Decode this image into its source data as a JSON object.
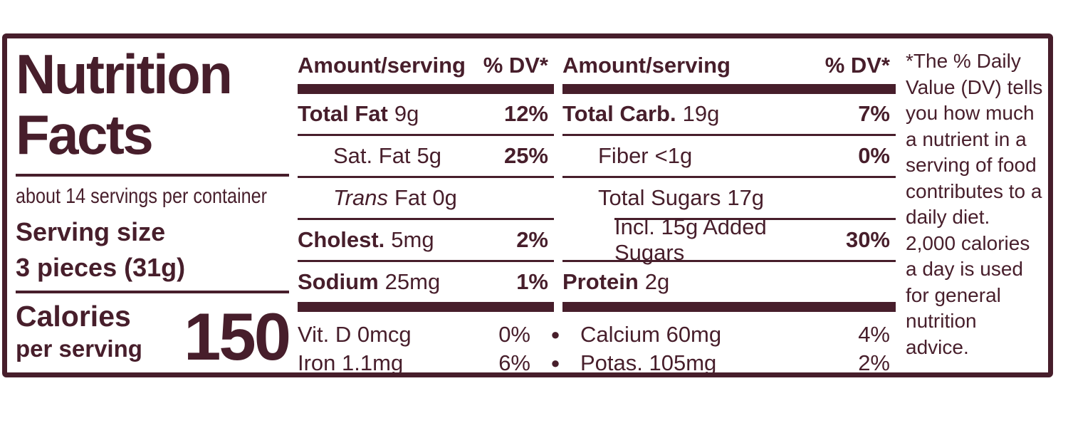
{
  "colors": {
    "ink": "#471e2b",
    "background": "#ffffff"
  },
  "label": {
    "title_line1": "Nutrition",
    "title_line2": "Facts",
    "servings_per_container": "about 14 servings per container",
    "serving_size_label": "Serving size",
    "serving_size_value": "3 pieces (31g)",
    "calories_label": "Calories",
    "calories_sublabel": "per serving",
    "calories_value": "150"
  },
  "columns": [
    {
      "header": {
        "amount": "Amount/serving",
        "dv": "% DV*"
      },
      "rows": [
        {
          "name": "Total Fat",
          "amount": "9g",
          "dv": "12%"
        },
        {
          "name": "Sat. Fat",
          "amount": "5g",
          "dv": "25%"
        },
        {
          "name": "Trans",
          "amount": "Fat 0g",
          "dv": ""
        },
        {
          "name": "Cholest.",
          "amount": "5mg",
          "dv": "2%"
        },
        {
          "name": "Sodium",
          "amount": "25mg",
          "dv": "1%"
        }
      ]
    },
    {
      "header": {
        "amount": "Amount/serving",
        "dv": "% DV*"
      },
      "rows": [
        {
          "name": "Total Carb.",
          "amount": "19g",
          "dv": "7%"
        },
        {
          "name": "Fiber",
          "amount": "<1g",
          "dv": "0%"
        },
        {
          "name": "Total Sugars",
          "amount": "17g",
          "dv": ""
        },
        {
          "name": "Incl. 15g Added Sugars",
          "amount": "",
          "dv": "30%"
        },
        {
          "name": "Protein",
          "amount": "2g",
          "dv": ""
        }
      ]
    }
  ],
  "micronutrients": {
    "bullet": "●",
    "rows": [
      {
        "left_name": "Vit. D 0mcg",
        "left_dv": "0%",
        "right_name": "Calcium 60mg",
        "right_dv": "4%"
      },
      {
        "left_name": "Iron 1.1mg",
        "left_dv": "6%",
        "right_name": "Potas. 105mg",
        "right_dv": "2%"
      }
    ]
  },
  "footnote": {
    "lines": [
      "*The % Daily",
      "Value (DV) tells",
      "you how much",
      "a nutrient in a",
      "serving of food",
      "contributes to a",
      "daily diet.",
      "2,000 calories",
      "a day is used",
      "for general",
      "nutrition",
      "advice."
    ]
  }
}
